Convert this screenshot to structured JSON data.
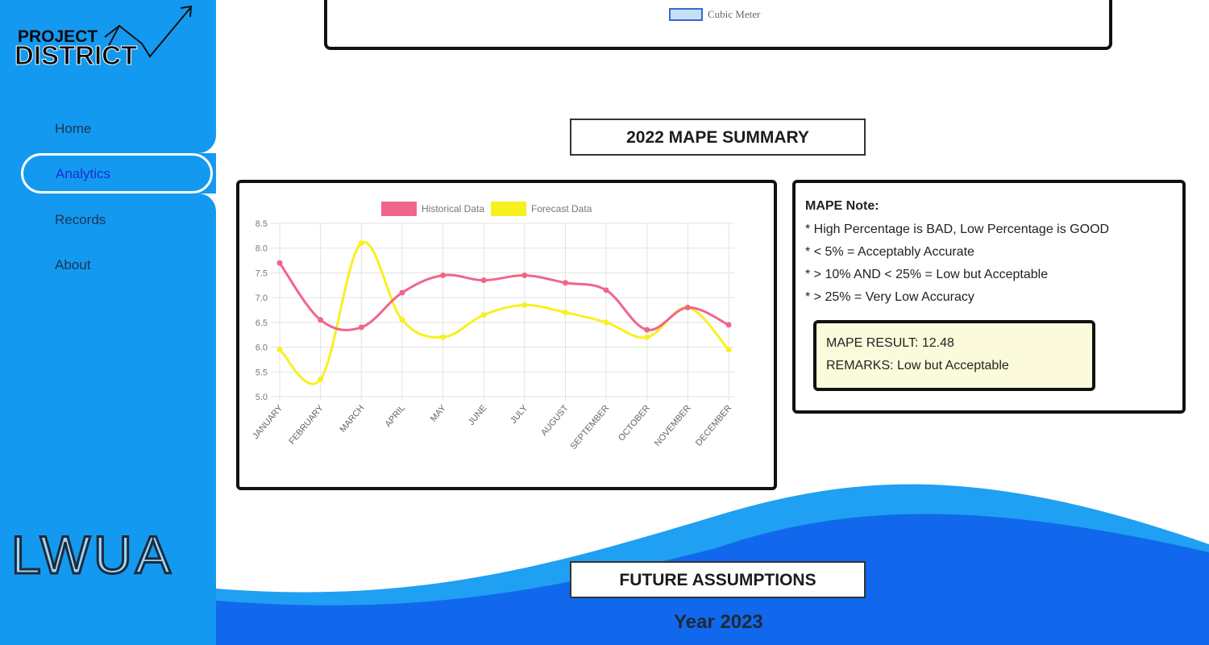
{
  "brand": {
    "line1": "PROJECT",
    "line2": "DISTRICT",
    "footer_logo": "LWUA"
  },
  "sidebar": {
    "items": [
      {
        "label": "Home"
      },
      {
        "label": "Analytics",
        "active": true
      },
      {
        "label": "Records"
      },
      {
        "label": "About"
      }
    ]
  },
  "top_chart": {
    "legend": "Cubic Meter",
    "legend_color": "#c5e0f5"
  },
  "mape_section": {
    "title": "2022 MAPE SUMMARY"
  },
  "chart_data": {
    "type": "line",
    "categories": [
      "JANUARY",
      "FEBRUARY",
      "MARCH",
      "APRIL",
      "MAY",
      "JUNE",
      "JULY",
      "AUGUST",
      "SEPTEMBER",
      "OCTOBER",
      "NOVEMBER",
      "DECEMBER"
    ],
    "series": [
      {
        "name": "Historical Data",
        "color": "#f0668a",
        "values": [
          7.7,
          6.55,
          6.4,
          7.1,
          7.45,
          7.35,
          7.45,
          7.3,
          7.15,
          6.35,
          6.8,
          6.45
        ]
      },
      {
        "name": "Forecast Data",
        "color": "#f6f11f",
        "values": [
          5.95,
          5.35,
          8.1,
          6.55,
          6.2,
          6.65,
          6.85,
          6.7,
          6.5,
          6.2,
          6.8,
          5.95
        ]
      }
    ],
    "ylim": [
      5.0,
      8.5
    ],
    "yticks": [
      "5.0",
      "5.5",
      "6.0",
      "6.5",
      "7.0",
      "7.5",
      "8.0",
      "8.5"
    ],
    "legend_position": "top",
    "grid": true
  },
  "note": {
    "title": "MAPE Note:",
    "lines": [
      "* High Percentage is BAD, Low Percentage is GOOD",
      "* < 5% = Acceptably Accurate",
      "* > 10% AND < 25% = Low but Acceptable",
      "* > 25% = Very Low Accuracy"
    ],
    "result_label": "MAPE RESULT: 12.48",
    "remarks_label": "REMARKS: Low but Acceptable"
  },
  "future_section": {
    "title": "FUTURE ASSUMPTIONS",
    "year": "Year 2023"
  },
  "colors": {
    "sidebar": "#1499f0",
    "wave_light": "#1fa0f2",
    "wave_dark": "#1268ec"
  }
}
